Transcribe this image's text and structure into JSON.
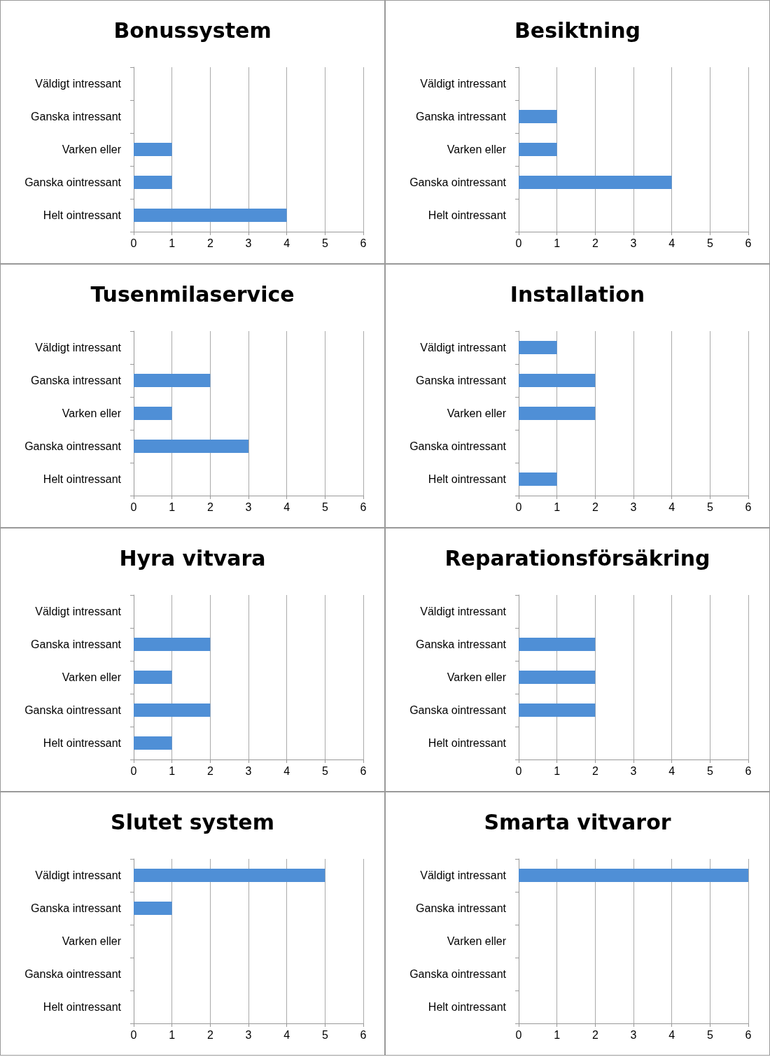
{
  "chart_data": [
    {
      "type": "bar",
      "orientation": "horizontal",
      "title": "Bonussystem",
      "categories": [
        "Väldigt intressant",
        "Ganska intressant",
        "Varken eller",
        "Ganska ointressant",
        "Helt ointressant"
      ],
      "series": [
        {
          "color": "#4f8fd6",
          "values": [
            0,
            0,
            1,
            1,
            4
          ]
        }
      ],
      "xlim": [
        0,
        6
      ],
      "xticks": [
        0,
        1,
        2,
        3,
        4,
        5,
        6
      ],
      "grid": "x"
    },
    {
      "type": "bar",
      "orientation": "horizontal",
      "title": "Besiktning",
      "categories": [
        "Väldigt intressant",
        "Ganska intressant",
        "Varken eller",
        "Ganska ointressant",
        "Helt ointressant"
      ],
      "series": [
        {
          "color": "#4f8fd6",
          "values": [
            0,
            1,
            1,
            4,
            0
          ]
        }
      ],
      "xlim": [
        0,
        6
      ],
      "xticks": [
        0,
        1,
        2,
        3,
        4,
        5,
        6
      ],
      "grid": "x"
    },
    {
      "type": "bar",
      "orientation": "horizontal",
      "title": "Tusenmilaservice",
      "categories": [
        "Väldigt intressant",
        "Ganska intressant",
        "Varken eller",
        "Ganska ointressant",
        "Helt ointressant"
      ],
      "series": [
        {
          "color": "#4f8fd6",
          "values": [
            0,
            2,
            1,
            3,
            0
          ]
        }
      ],
      "xlim": [
        0,
        6
      ],
      "xticks": [
        0,
        1,
        2,
        3,
        4,
        5,
        6
      ],
      "grid": "x"
    },
    {
      "type": "bar",
      "orientation": "horizontal",
      "title": "Installation",
      "categories": [
        "Väldigt intressant",
        "Ganska intressant",
        "Varken eller",
        "Ganska ointressant",
        "Helt ointressant"
      ],
      "series": [
        {
          "color": "#4f8fd6",
          "values": [
            1,
            2,
            2,
            0,
            1
          ]
        }
      ],
      "xlim": [
        0,
        6
      ],
      "xticks": [
        0,
        1,
        2,
        3,
        4,
        5,
        6
      ],
      "grid": "x"
    },
    {
      "type": "bar",
      "orientation": "horizontal",
      "title": "Hyra vitvara",
      "categories": [
        "Väldigt intressant",
        "Ganska intressant",
        "Varken eller",
        "Ganska ointressant",
        "Helt ointressant"
      ],
      "series": [
        {
          "color": "#4f8fd6",
          "values": [
            0,
            2,
            1,
            2,
            1
          ]
        }
      ],
      "xlim": [
        0,
        6
      ],
      "xticks": [
        0,
        1,
        2,
        3,
        4,
        5,
        6
      ],
      "grid": "x"
    },
    {
      "type": "bar",
      "orientation": "horizontal",
      "title": "Reparationsförsäkring",
      "categories": [
        "Väldigt intressant",
        "Ganska intressant",
        "Varken eller",
        "Ganska ointressant",
        "Helt ointressant"
      ],
      "series": [
        {
          "color": "#4f8fd6",
          "values": [
            0,
            2,
            2,
            2,
            0
          ]
        }
      ],
      "xlim": [
        0,
        6
      ],
      "xticks": [
        0,
        1,
        2,
        3,
        4,
        5,
        6
      ],
      "grid": "x"
    },
    {
      "type": "bar",
      "orientation": "horizontal",
      "title": "Slutet system",
      "categories": [
        "Väldigt intressant",
        "Ganska intressant",
        "Varken eller",
        "Ganska ointressant",
        "Helt ointressant"
      ],
      "series": [
        {
          "color": "#4f8fd6",
          "values": [
            5,
            1,
            0,
            0,
            0
          ]
        }
      ],
      "xlim": [
        0,
        6
      ],
      "xticks": [
        0,
        1,
        2,
        3,
        4,
        5,
        6
      ],
      "grid": "x"
    },
    {
      "type": "bar",
      "orientation": "horizontal",
      "title": "Smarta vitvaror",
      "categories": [
        "Väldigt intressant",
        "Ganska intressant",
        "Varken eller",
        "Ganska ointressant",
        "Helt ointressant"
      ],
      "series": [
        {
          "color": "#4f8fd6",
          "values": [
            6,
            0,
            0,
            0,
            0
          ]
        }
      ],
      "xlim": [
        0,
        6
      ],
      "xticks": [
        0,
        1,
        2,
        3,
        4,
        5,
        6
      ],
      "grid": "x"
    }
  ]
}
